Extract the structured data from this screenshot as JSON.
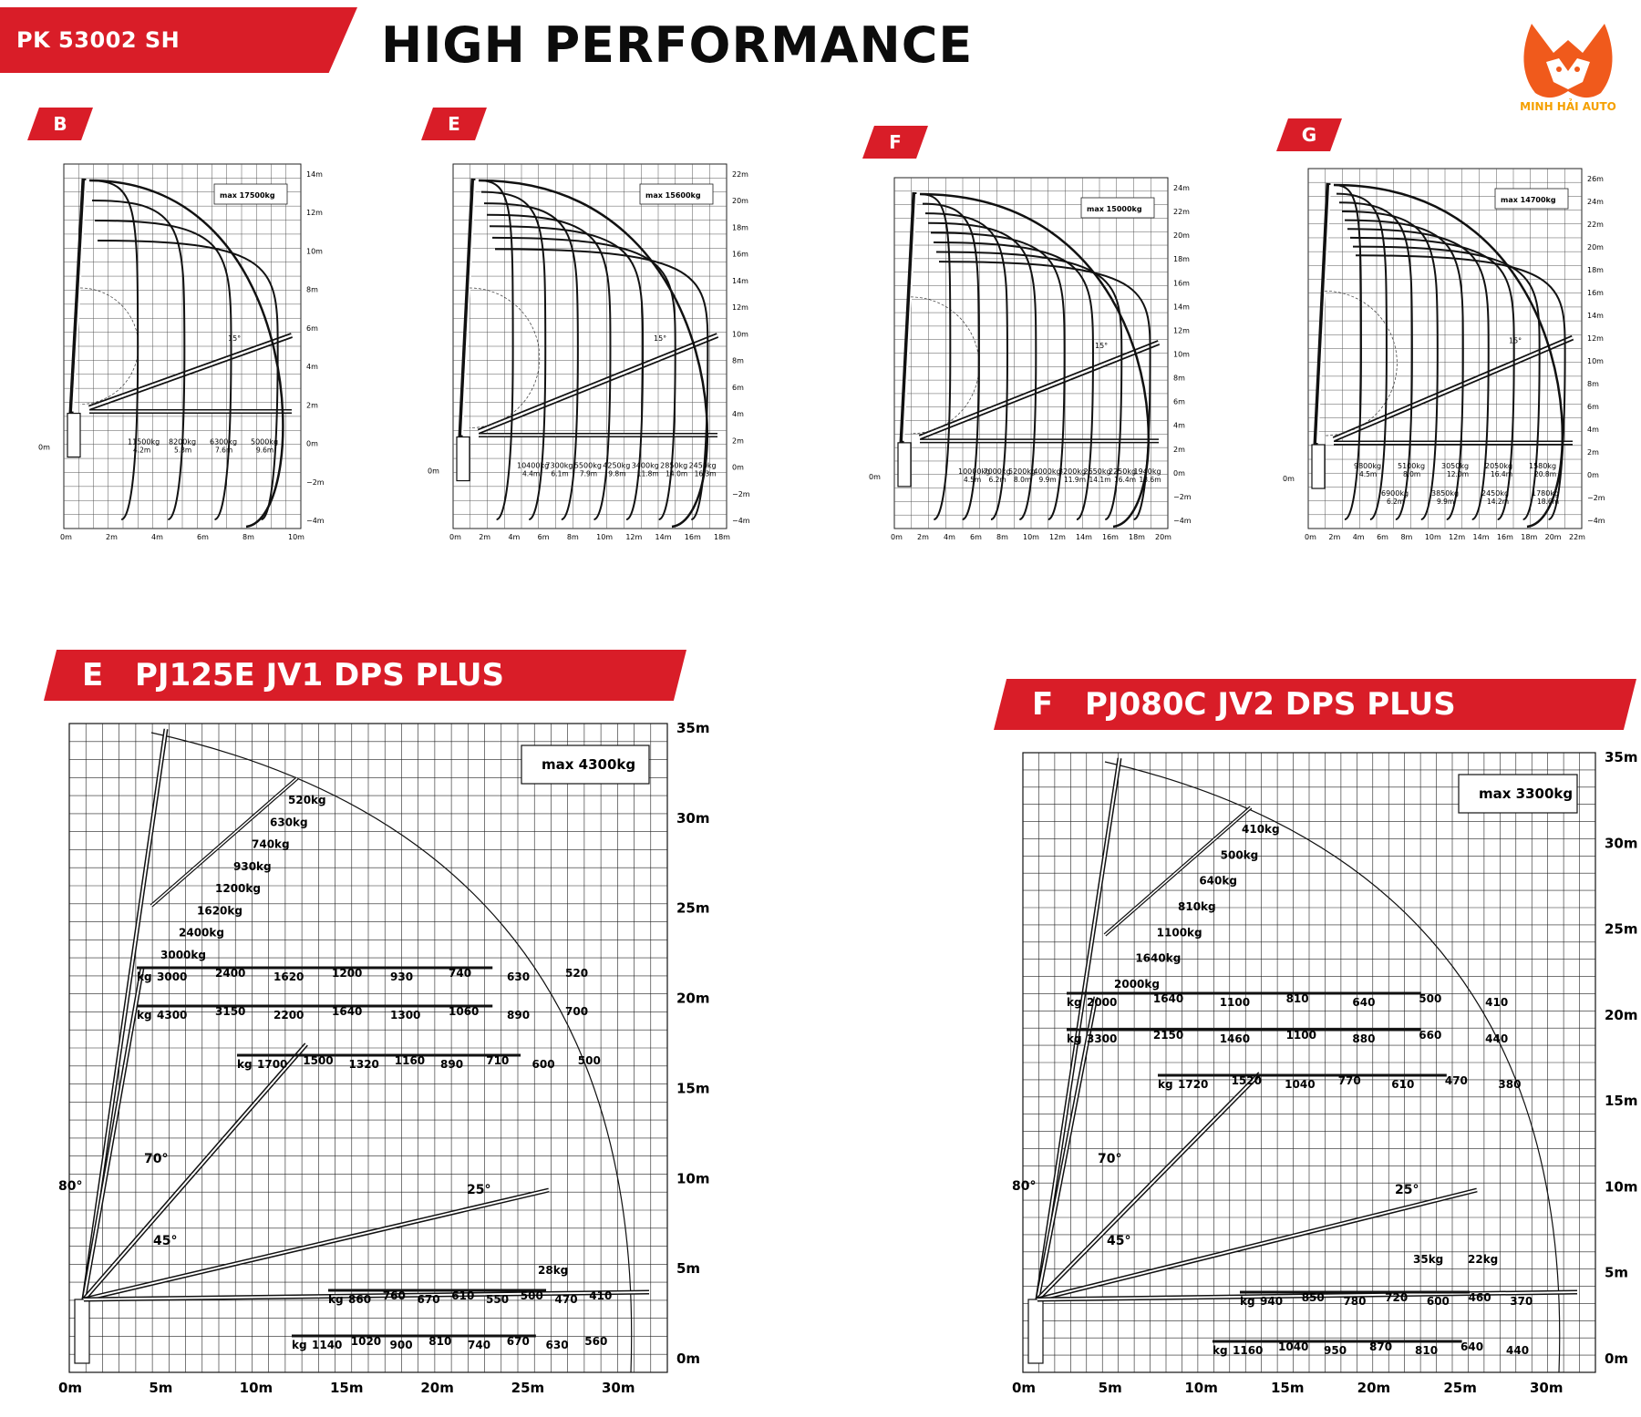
{
  "header": {
    "model": "PK 53002 SH",
    "title": "HIGH PERFORMANCE",
    "brand": "MINH HẢI AUTO",
    "accent_color": "#d91d28",
    "brand_color": "#f05a1c"
  },
  "top_charts": [
    {
      "tag": "B",
      "max": "max 17500kg",
      "x_ticks": [
        "0m",
        "2m",
        "4m",
        "6m",
        "8m",
        "10m"
      ],
      "y_ticks": [
        "14m",
        "12m",
        "10m",
        "8m",
        "6m",
        "4m",
        "2m",
        "0m",
        "−2m",
        "−4m"
      ],
      "left_zero": "0m",
      "angle": "15°",
      "loads": [
        {
          "kg": "11500kg",
          "m": "4.2m"
        },
        {
          "kg": "8200kg",
          "m": "5.8m"
        },
        {
          "kg": "6300kg",
          "m": "7.6m"
        },
        {
          "kg": "5000kg",
          "m": "9.6m"
        }
      ]
    },
    {
      "tag": "E",
      "max": "max 15600kg",
      "x_ticks": [
        "0m",
        "2m",
        "4m",
        "6m",
        "8m",
        "10m",
        "12m",
        "14m",
        "16m",
        "18m"
      ],
      "y_ticks": [
        "22m",
        "20m",
        "18m",
        "16m",
        "14m",
        "12m",
        "10m",
        "8m",
        "6m",
        "4m",
        "2m",
        "0m",
        "−2m",
        "−4m"
      ],
      "left_zero": "0m",
      "angle": "15°",
      "loads": [
        {
          "kg": "10400kg",
          "m": "4.4m"
        },
        {
          "kg": "7300kg",
          "m": "6.1m"
        },
        {
          "kg": "5500kg",
          "m": "7.9m"
        },
        {
          "kg": "4250kg",
          "m": "9.8m"
        },
        {
          "kg": "3400kg",
          "m": "11.8m"
        },
        {
          "kg": "2850kg",
          "m": "14.0m"
        },
        {
          "kg": "2450kg",
          "m": "16.3m"
        }
      ]
    },
    {
      "tag": "F",
      "max": "max 15000kg",
      "x_ticks": [
        "0m",
        "2m",
        "4m",
        "6m",
        "8m",
        "10m",
        "12m",
        "14m",
        "16m",
        "18m",
        "20m"
      ],
      "y_ticks": [
        "24m",
        "22m",
        "20m",
        "18m",
        "16m",
        "14m",
        "12m",
        "10m",
        "8m",
        "6m",
        "4m",
        "2m",
        "0m",
        "−2m",
        "−4m"
      ],
      "left_zero": "0m",
      "angle": "15°",
      "loads": [
        {
          "kg": "10000kg",
          "m": "4.5m"
        },
        {
          "kg": "7000kg",
          "m": "6.2m"
        },
        {
          "kg": "5200kg",
          "m": "8.0m"
        },
        {
          "kg": "4000kg",
          "m": "9.9m"
        },
        {
          "kg": "3200kg",
          "m": "11.9m"
        },
        {
          "kg": "2650kg",
          "m": "14.1m"
        },
        {
          "kg": "2250kg",
          "m": "16.4m"
        },
        {
          "kg": "1940kg",
          "m": "18.6m"
        }
      ]
    },
    {
      "tag": "G",
      "max": "max 14700kg",
      "x_ticks": [
        "0m",
        "2m",
        "4m",
        "6m",
        "8m",
        "10m",
        "12m",
        "14m",
        "16m",
        "18m",
        "20m",
        "22m"
      ],
      "y_ticks": [
        "26m",
        "24m",
        "22m",
        "20m",
        "18m",
        "16m",
        "14m",
        "12m",
        "10m",
        "8m",
        "6m",
        "4m",
        "2m",
        "0m",
        "−2m",
        "−4m"
      ],
      "left_zero": "0m",
      "angle": "15°",
      "loads_upper": [
        {
          "kg": "9800kg",
          "m": "4.5m"
        },
        {
          "kg": "5100kg",
          "m": "8.0m"
        },
        {
          "kg": "3050kg",
          "m": "12.0m"
        },
        {
          "kg": "2050kg",
          "m": "16.4m"
        },
        {
          "kg": "1580kg",
          "m": "20.8m"
        }
      ],
      "loads_lower": [
        {
          "kg": "6900kg",
          "m": "6.2m"
        },
        {
          "kg": "3850kg",
          "m": "9.9m"
        },
        {
          "kg": "2450kg",
          "m": "14.2m"
        },
        {
          "kg": "1780kg",
          "m": "18.6m"
        }
      ]
    }
  ],
  "bottom_charts": [
    {
      "letter": "E",
      "name": "PJ125E JV1 DPS PLUS",
      "max": "max 4300kg",
      "x_ticks": [
        "0m",
        "5m",
        "10m",
        "15m",
        "20m",
        "25m",
        "30m"
      ],
      "y_ticks": [
        "35m",
        "30m",
        "25m",
        "20m",
        "15m",
        "10m",
        "5m",
        "0m"
      ],
      "angles": [
        "80°",
        "70°",
        "45°",
        "25°"
      ],
      "diagonal_loads": [
        "520kg",
        "630kg",
        "740kg",
        "930kg",
        "1200kg",
        "1620kg",
        "2400kg",
        "3000kg"
      ],
      "rows": [
        {
          "prefix": "kg",
          "values": [
            "3000",
            "2400",
            "1620",
            "1200",
            "930",
            "740",
            "630",
            "520"
          ]
        },
        {
          "prefix": "kg",
          "values": [
            "4300",
            "3150",
            "2200",
            "1640",
            "1300",
            "1060",
            "890",
            "700"
          ]
        },
        {
          "prefix": "kg",
          "values": [
            "1700",
            "1500",
            "1320",
            "1160",
            "890",
            "710",
            "600",
            "500"
          ]
        },
        {
          "prefix": "kg",
          "values": [
            "860",
            "760",
            "670",
            "610",
            "550",
            "500",
            "470",
            "410"
          ]
        },
        {
          "prefix": "kg",
          "values": [
            "1140",
            "1020",
            "900",
            "810",
            "740",
            "670",
            "630",
            "560"
          ]
        }
      ],
      "extra": "28kg"
    },
    {
      "letter": "F",
      "name": "PJ080C JV2 DPS PLUS",
      "max": "max 3300kg",
      "x_ticks": [
        "0m",
        "5m",
        "10m",
        "15m",
        "20m",
        "25m",
        "30m"
      ],
      "y_ticks": [
        "35m",
        "30m",
        "25m",
        "20m",
        "15m",
        "10m",
        "5m",
        "0m"
      ],
      "angles": [
        "80°",
        "70°",
        "45°",
        "25°"
      ],
      "diagonal_loads": [
        "410kg",
        "500kg",
        "640kg",
        "810kg",
        "1100kg",
        "1640kg",
        "2000kg"
      ],
      "rows": [
        {
          "prefix": "kg",
          "values": [
            "2000",
            "1640",
            "1100",
            "810",
            "640",
            "500",
            "410"
          ]
        },
        {
          "prefix": "kg",
          "values": [
            "3300",
            "2150",
            "1460",
            "1100",
            "880",
            "660",
            "440"
          ]
        },
        {
          "prefix": "kg",
          "values": [
            "1720",
            "1520",
            "1040",
            "770",
            "610",
            "470",
            "380"
          ]
        },
        {
          "prefix": "kg",
          "values": [
            "940",
            "850",
            "780",
            "720",
            "600",
            "460",
            "370"
          ]
        },
        {
          "prefix": "kg",
          "values": [
            "1160",
            "1040",
            "950",
            "870",
            "810",
            "640",
            "440"
          ]
        }
      ],
      "extra_a": "35kg",
      "extra_b": "22kg"
    }
  ]
}
